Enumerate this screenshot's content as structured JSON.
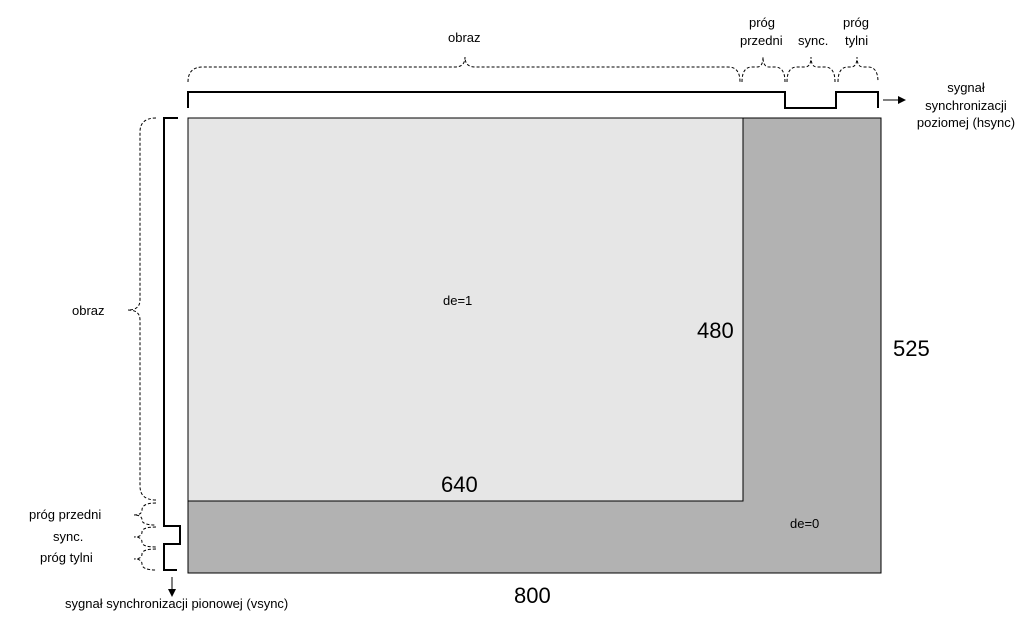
{
  "colors": {
    "active_area": "#e6e6e6",
    "blanking_area": "#b2b2b2",
    "outline": "#000000"
  },
  "regions": {
    "active_label": "de=1",
    "blanking_label": "de=0"
  },
  "dimensions": {
    "active_width": "640",
    "active_height": "480",
    "total_width": "800",
    "total_height": "525"
  },
  "horizontal": {
    "image": "obraz",
    "front_porch_line1": "próg",
    "front_porch_line2": "przedni",
    "sync": "sync.",
    "back_porch_line1": "próg",
    "back_porch_line2": "tylni",
    "signal_line1": "sygnał",
    "signal_line2": "synchronizacji",
    "signal_line3": "poziomej (hsync)"
  },
  "vertical": {
    "image": "obraz",
    "front_porch": "próg przedni",
    "sync": "sync.",
    "back_porch": "próg tylni",
    "signal": "sygnał synchronizacji pionowej (vsync)"
  }
}
